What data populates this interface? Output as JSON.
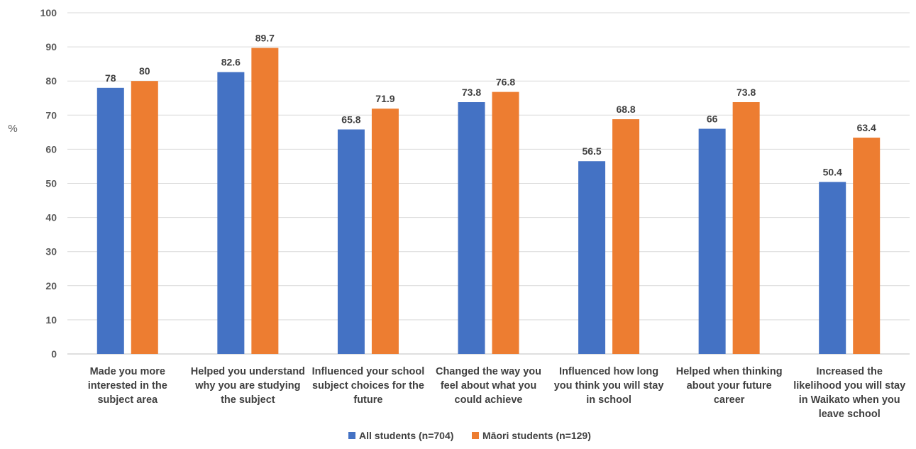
{
  "chart_data": {
    "type": "bar",
    "title": "",
    "xlabel": "",
    "ylabel": "%",
    "ylim": [
      0,
      100
    ],
    "y_ticks": [
      0,
      10,
      20,
      30,
      40,
      50,
      60,
      70,
      80,
      90,
      100
    ],
    "grid": true,
    "legend_position": "bottom",
    "categories": [
      [
        "Made you more",
        "interested in the",
        "subject area"
      ],
      [
        "Helped you understand",
        "why you are studying",
        "the subject"
      ],
      [
        "Influenced your school",
        "subject choices for the",
        "future"
      ],
      [
        "Changed the way you",
        "feel about what you",
        "could achieve"
      ],
      [
        "Influenced how long",
        "you think you will stay",
        "in school"
      ],
      [
        "Helped when thinking",
        "about your future",
        "career"
      ],
      [
        "Increased the",
        "likelihood you will stay",
        "in Waikato when you",
        "leave school"
      ]
    ],
    "series": [
      {
        "name": "All students (n=704)",
        "color": "#4472c4",
        "values": [
          78,
          82.6,
          65.8,
          73.8,
          56.5,
          66,
          50.4
        ]
      },
      {
        "name": "Māori students (n=129)",
        "color": "#ed7d31",
        "values": [
          80,
          89.7,
          71.9,
          76.8,
          68.8,
          73.8,
          63.4
        ]
      }
    ]
  }
}
